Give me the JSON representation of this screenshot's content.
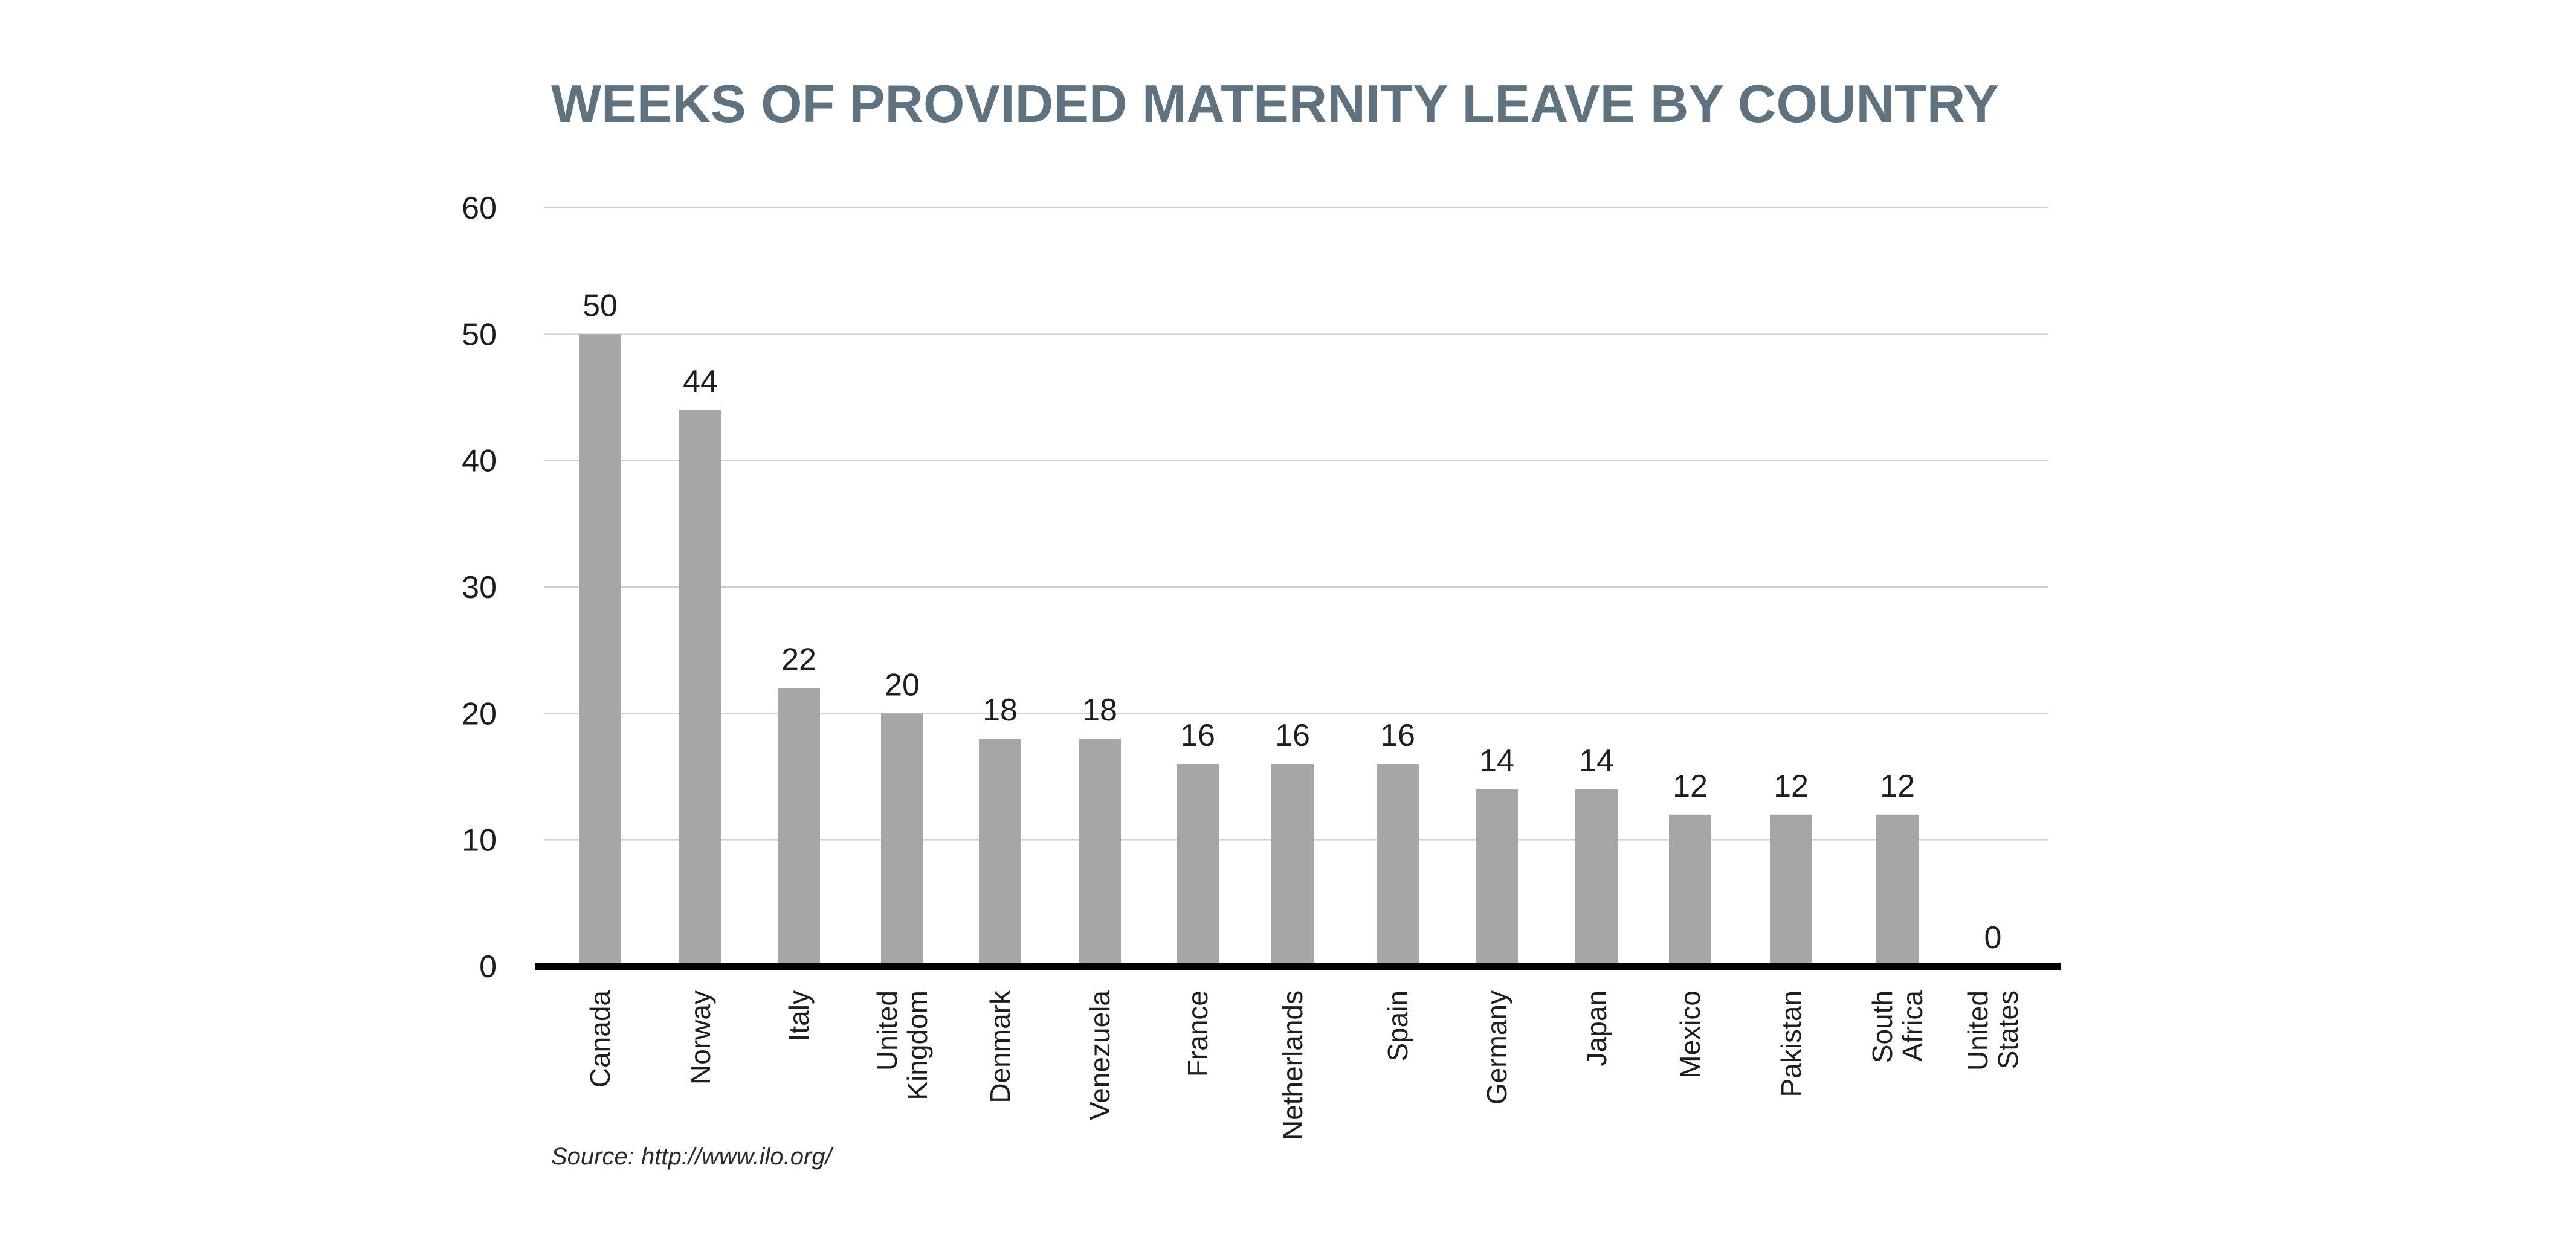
{
  "chart_data": {
    "type": "bar",
    "title": "WEEKS OF PROVIDED MATERNITY LEAVE BY COUNTRY",
    "xlabel": "",
    "ylabel": "",
    "ylim": [
      0,
      60
    ],
    "yticks": [
      0,
      10,
      20,
      30,
      40,
      50,
      60
    ],
    "grid": true,
    "categories": [
      "Canada",
      "Norway",
      "Italy",
      "United Kingdom",
      "Denmark",
      "Venezuela",
      "France",
      "Netherlands",
      "Spain",
      "Germany",
      "Japan",
      "Mexico",
      "Pakistan",
      "South Africa",
      "United States"
    ],
    "category_lines": [
      [
        "Canada"
      ],
      [
        "Norway"
      ],
      [
        "Italy"
      ],
      [
        "United",
        "Kingdom"
      ],
      [
        "Denmark"
      ],
      [
        "Venezuela"
      ],
      [
        "France"
      ],
      [
        "Netherlands"
      ],
      [
        "Spain"
      ],
      [
        "Germany"
      ],
      [
        "Japan"
      ],
      [
        "Mexico"
      ],
      [
        "Pakistan"
      ],
      [
        "South",
        "Africa"
      ],
      [
        "United",
        "States"
      ]
    ],
    "values": [
      50,
      44,
      22,
      20,
      18,
      18,
      16,
      16,
      16,
      14,
      14,
      12,
      12,
      12,
      0
    ],
    "bar_color": "#a6a6a6",
    "grid_color": "#d0d0d0",
    "axis_color": "#000000",
    "title_color": "#5f7280",
    "source": "Source: http://www.ilo.org/"
  }
}
